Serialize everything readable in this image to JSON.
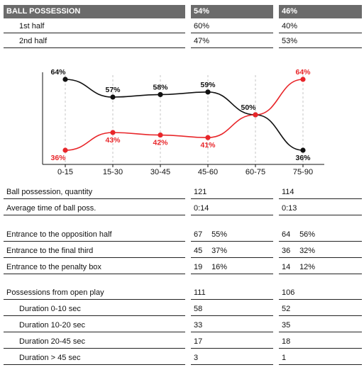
{
  "header": {
    "title": "BALL POSSESSION",
    "team1": "54%",
    "team2": "46%"
  },
  "halves": [
    {
      "label": "1st half",
      "team1": "60%",
      "team2": "40%"
    },
    {
      "label": "2nd half",
      "team1": "47%",
      "team2": "53%"
    }
  ],
  "colors": {
    "team1": "#111111",
    "team2": "#e8262a",
    "header_bg": "#6b6b6b"
  },
  "chart_data": {
    "type": "line",
    "categories": [
      "0-15",
      "15-30",
      "30-45",
      "45-60",
      "60-75",
      "75-90"
    ],
    "series": [
      {
        "values": [
          64,
          57,
          58,
          59,
          50,
          36
        ],
        "labels": [
          "64%",
          "57%",
          "58%",
          "59%",
          "50%",
          "36%"
        ],
        "color": "#111111"
      },
      {
        "values": [
          36,
          43,
          42,
          41,
          50,
          64
        ],
        "labels": [
          "36%",
          "43%",
          "42%",
          "41%",
          "",
          "64%"
        ],
        "color": "#e8262a"
      }
    ],
    "ylim": [
      36,
      64
    ],
    "grid": false
  },
  "stats_a": [
    {
      "label": "Ball possession, quantity",
      "team1": "121",
      "team2": "114"
    },
    {
      "label": "Average time of ball poss.",
      "team1": "0:14",
      "team2": "0:13"
    }
  ],
  "stats_b": [
    {
      "label": "Entrance to the opposition half",
      "team1": "67",
      "team1_pct": "55%",
      "team2": "64",
      "team2_pct": "56%"
    },
    {
      "label": "Entrance to the final third",
      "team1": "45",
      "team1_pct": "37%",
      "team2": "36",
      "team2_pct": "32%"
    },
    {
      "label": "Entrance to the penalty box",
      "team1": "19",
      "team1_pct": "16%",
      "team2": "14",
      "team2_pct": "12%"
    }
  ],
  "stats_c": [
    {
      "label": "Possessions from open play",
      "team1": "111",
      "team2": "106"
    },
    {
      "label": "Duration  0-10 sec",
      "team1": "58",
      "team2": "52"
    },
    {
      "label": "Duration  10-20 sec",
      "team1": "33",
      "team2": "35"
    },
    {
      "label": "Duration  20-45 sec",
      "team1": "17",
      "team2": "18"
    },
    {
      "label": "Duration  > 45 sec",
      "team1": "3",
      "team2": "1"
    }
  ]
}
